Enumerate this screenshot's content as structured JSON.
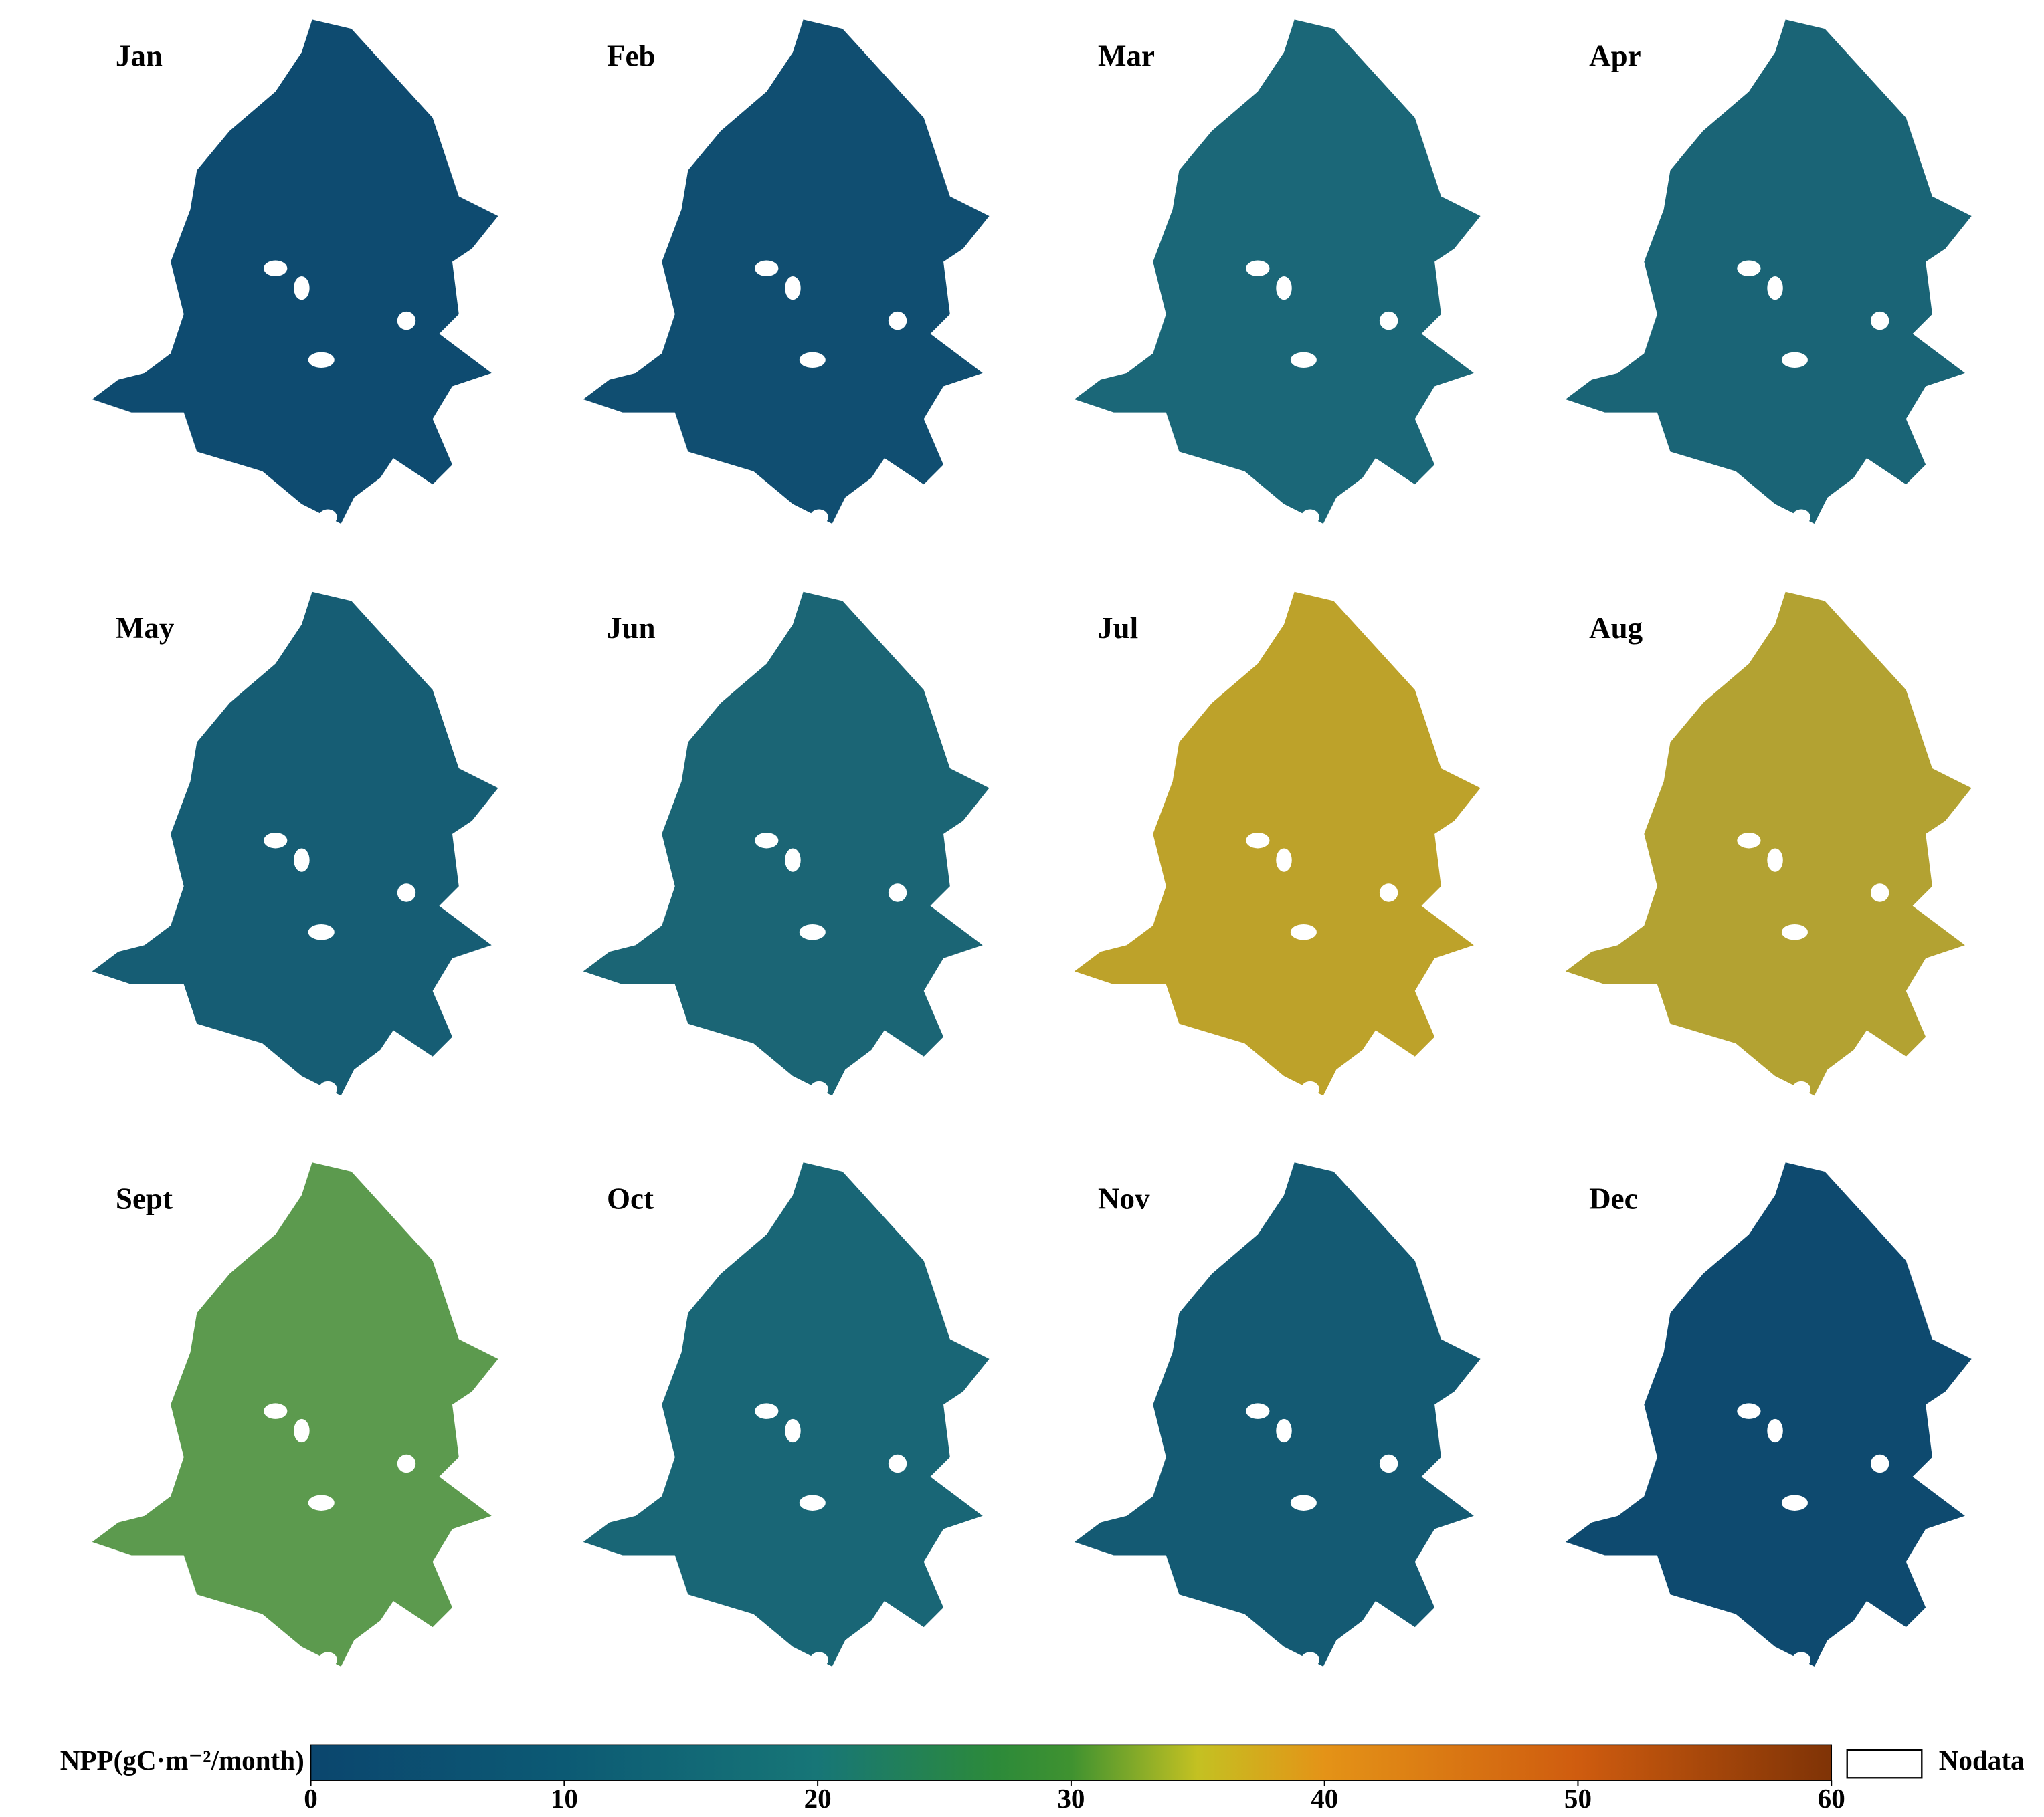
{
  "panels": [
    {
      "label": "Jan",
      "color": "#0e4b70"
    },
    {
      "label": "Feb",
      "color": "#104e71"
    },
    {
      "label": "Mar",
      "color": "#1b6778"
    },
    {
      "label": "Apr",
      "color": "#1a6476"
    },
    {
      "label": "May",
      "color": "#165d74"
    },
    {
      "label": "Jun",
      "color": "#1b6575"
    },
    {
      "label": "Jul",
      "color": "#bda22a"
    },
    {
      "label": "Aug",
      "color": "#b3a232"
    },
    {
      "label": "Sept",
      "color": "#5c9a4e"
    },
    {
      "label": "Oct",
      "color": "#196676"
    },
    {
      "label": "Nov",
      "color": "#145a73"
    },
    {
      "label": "Dec",
      "color": "#0e4a6f"
    }
  ],
  "colorbar": {
    "title": "NPP(gC·m⁻²/month)",
    "clim": [
      0,
      60
    ],
    "ticks": [
      0,
      10,
      20,
      30,
      40,
      50,
      60
    ],
    "colorscale": [
      [
        0,
        "#0b466e"
      ],
      [
        10,
        "#0c5a74"
      ],
      [
        20,
        "#177677"
      ],
      [
        27,
        "#2c8a3a"
      ],
      [
        30,
        "#3f9230"
      ],
      [
        35,
        "#c4c122"
      ],
      [
        40,
        "#e49317"
      ],
      [
        50,
        "#cf5c0f"
      ],
      [
        60,
        "#7f3306"
      ]
    ]
  },
  "nodata_label": "Nodata"
}
